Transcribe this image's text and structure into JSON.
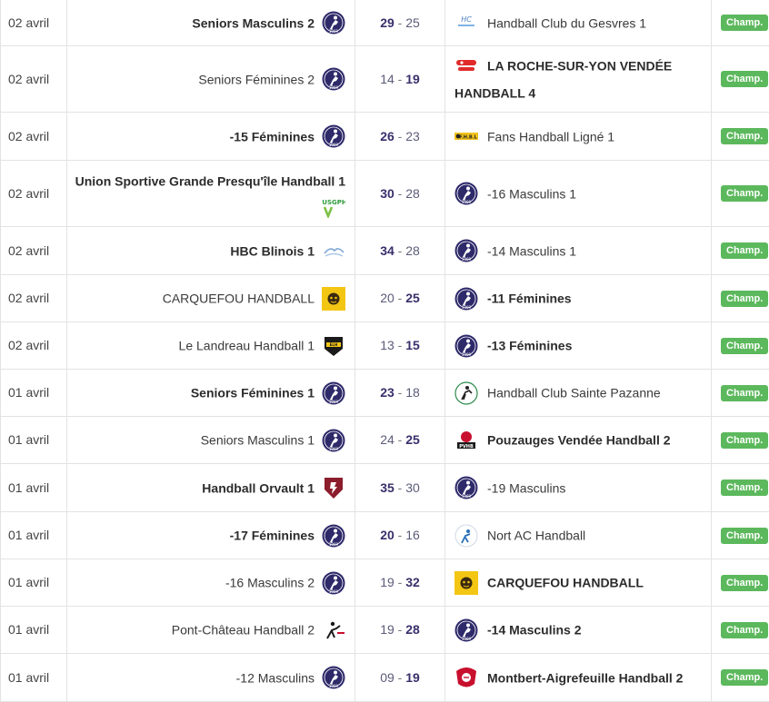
{
  "matches": [
    {
      "date": "02 avril",
      "home": "Seniors Masculins 2",
      "home_bold": true,
      "home_logo": "club-logo",
      "score_home": "29",
      "score_away": "25",
      "win": "home",
      "away": "Handball Club du Gesvres 1",
      "away_bold": false,
      "away_logo": "gesvres-logo",
      "badge": "Champ.",
      "h": 50
    },
    {
      "date": "02 avril",
      "home": "Seniors Féminines 2",
      "home_bold": false,
      "home_logo": "club-logo",
      "score_home": "14",
      "score_away": "19",
      "win": "away",
      "away": "LA ROCHE-SUR-YON VENDÉE HANDBALL 4",
      "away_bold": true,
      "away_logo": "roche-logo",
      "badge": "Champ.",
      "h": 73
    },
    {
      "date": "02 avril",
      "home": "-15 Féminines",
      "home_bold": true,
      "home_logo": "club-logo",
      "score_home": "26",
      "score_away": "23",
      "win": "home",
      "away": "Fans Handball Ligné 1",
      "away_bold": false,
      "away_logo": "fhbl-logo",
      "badge": "Champ.",
      "h": 53
    },
    {
      "date": "02 avril",
      "home": "Union Sportive Grande Presqu'île Handball 1",
      "home_bold": true,
      "home_logo": "usgph-logo",
      "score_home": "30",
      "score_away": "28",
      "win": "home",
      "away": "-16 Masculins 1",
      "away_bold": false,
      "away_logo": "club-logo",
      "badge": "Champ.",
      "h": 73
    },
    {
      "date": "02 avril",
      "home": "HBC Blinois 1",
      "home_bold": true,
      "home_logo": "blinois-logo",
      "score_home": "34",
      "score_away": "28",
      "win": "home",
      "away": "-14 Masculins 1",
      "away_bold": false,
      "away_logo": "club-logo",
      "badge": "Champ.",
      "h": 53
    },
    {
      "date": "02 avril",
      "home": "CARQUEFOU HANDBALL",
      "home_bold": false,
      "home_logo": "carquefou-logo",
      "score_home": "20",
      "score_away": "25",
      "win": "away",
      "away": "-11 Féminines",
      "away_bold": true,
      "away_logo": "club-logo",
      "badge": "Champ.",
      "h": 52
    },
    {
      "date": "02 avril",
      "home": "Le Landreau Handball 1",
      "home_bold": false,
      "home_logo": "landreau-logo",
      "score_home": "13",
      "score_away": "15",
      "win": "away",
      "away": "-13 Féminines",
      "away_bold": true,
      "away_logo": "club-logo",
      "badge": "Champ.",
      "h": 52
    },
    {
      "date": "01 avril",
      "home": "Seniors Féminines 1",
      "home_bold": true,
      "home_logo": "club-logo",
      "score_home": "23",
      "score_away": "18",
      "win": "home",
      "away": "Handball Club Sainte Pazanne",
      "away_bold": false,
      "away_logo": "pazanne-logo",
      "badge": "Champ.",
      "h": 52
    },
    {
      "date": "01 avril",
      "home": "Seniors Masculins 1",
      "home_bold": false,
      "home_logo": "club-logo",
      "score_home": "24",
      "score_away": "25",
      "win": "away",
      "away": "Pouzauges Vendée Handball 2",
      "away_bold": true,
      "away_logo": "pvhb-logo",
      "badge": "Champ.",
      "h": 52
    },
    {
      "date": "01 avril",
      "home": "Handball Orvault 1",
      "home_bold": true,
      "home_logo": "orvault-logo",
      "score_home": "35",
      "score_away": "30",
      "win": "home",
      "away": "-19 Masculins",
      "away_bold": false,
      "away_logo": "club-logo",
      "badge": "Champ.",
      "h": 53
    },
    {
      "date": "01 avril",
      "home": "-17 Féminines",
      "home_bold": true,
      "home_logo": "club-logo",
      "score_home": "20",
      "score_away": "16",
      "win": "home",
      "away": "Nort AC Handball",
      "away_bold": false,
      "away_logo": "nort-logo",
      "badge": "Champ.",
      "h": 52
    },
    {
      "date": "01 avril",
      "home": "-16 Masculins 2",
      "home_bold": false,
      "home_logo": "club-logo",
      "score_home": "19",
      "score_away": "32",
      "win": "away",
      "away": "CARQUEFOU HANDBALL",
      "away_bold": true,
      "away_logo": "carquefou-logo",
      "badge": "Champ.",
      "h": 52
    },
    {
      "date": "01 avril",
      "home": "Pont-Château Handball 2",
      "home_bold": false,
      "home_logo": "pontchateau-logo",
      "score_home": "19",
      "score_away": "28",
      "win": "away",
      "away": "-14 Masculins 2",
      "away_bold": true,
      "away_logo": "club-logo",
      "badge": "Champ.",
      "h": 52
    },
    {
      "date": "01 avril",
      "home": "-12 Masculins",
      "home_bold": false,
      "home_logo": "club-logo",
      "score_home": "09",
      "score_away": "19",
      "win": "away",
      "away": "Montbert-Aigrefeuille Handball 2",
      "away_bold": true,
      "away_logo": "montbert-logo",
      "badge": "Champ.",
      "h": 53
    }
  ],
  "logo_texts": {
    "fhbl": "F.H.B.L",
    "usgph": "USGPH",
    "pvhb": "PVHB",
    "club": "1969",
    "landreau": "ELH"
  }
}
